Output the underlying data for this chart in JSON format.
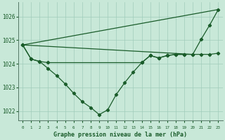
{
  "background_color": "#c8e8d8",
  "grid_color": "#a0ccbb",
  "line_color": "#1a5c2a",
  "title": "Graphe pression niveau de la mer (hPa)",
  "ylabel_ticks": [
    1022,
    1023,
    1024,
    1025,
    1026
  ],
  "xlim": [
    -0.5,
    23.5
  ],
  "ylim": [
    1021.6,
    1026.6
  ],
  "x_hours": [
    0,
    1,
    2,
    3,
    4,
    5,
    6,
    7,
    8,
    9,
    10,
    11,
    12,
    13,
    14,
    15,
    16,
    17,
    18,
    19,
    20,
    21,
    22,
    23
  ],
  "series1_x": [
    0,
    1,
    2,
    3,
    4,
    5,
    6,
    7,
    8,
    9,
    10,
    11,
    12,
    13,
    14,
    15,
    16,
    17,
    18,
    19
  ],
  "series1_y": [
    1024.8,
    1024.2,
    1024.1,
    1023.8,
    1023.5,
    1023.15,
    1022.75,
    1022.4,
    1022.15,
    1021.85,
    1022.05,
    1022.7,
    1023.2,
    1023.65,
    1024.05,
    1024.35,
    1024.25,
    1024.35,
    1024.4,
    1024.4
  ],
  "series2_x": [
    0,
    1,
    2,
    3,
    14,
    15,
    16,
    17,
    18,
    19,
    20,
    21,
    22,
    23
  ],
  "series2_y": [
    1024.8,
    1024.2,
    1024.1,
    1024.05,
    1024.05,
    1024.35,
    1024.25,
    1024.35,
    1024.4,
    1024.4,
    1024.4,
    1024.4,
    1024.4,
    1024.45
  ],
  "series3_x": [
    0,
    23
  ],
  "series3_y": [
    1024.8,
    1026.3
  ],
  "series4_x": [
    0,
    20,
    21,
    22,
    23
  ],
  "series4_y": [
    1024.8,
    1024.4,
    1025.05,
    1025.65,
    1026.3
  ]
}
